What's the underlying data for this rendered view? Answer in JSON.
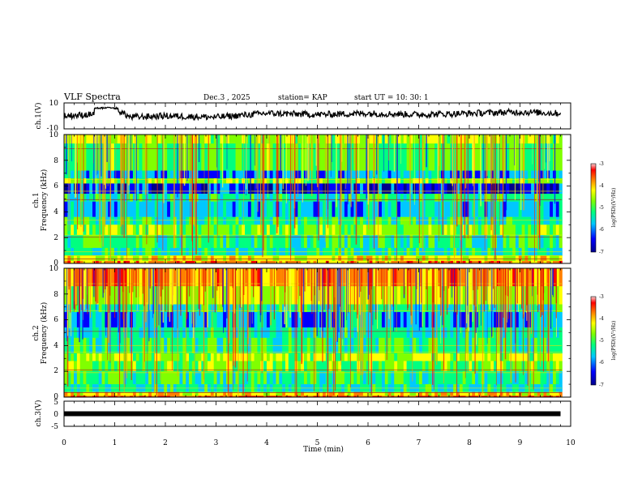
{
  "header": {
    "title": "VLF Spectra",
    "date": "Dec.3 , 2025",
    "station": "station= KAP",
    "start": "start UT = 10: 30: 1"
  },
  "chart_data": [
    {
      "type": "line",
      "panel": "ch1-waveform",
      "ylabel": "ch.1(V)",
      "ylim": [
        -10,
        10
      ],
      "ytick_labels": [
        "10",
        "-10"
      ],
      "xlim": [
        0,
        10
      ],
      "x_description": "Time (min)",
      "series": [
        {
          "name": "ch.1",
          "x": [
            0,
            0.5,
            1.0,
            1.3,
            2,
            3,
            4,
            5,
            6,
            7,
            8,
            9,
            9.8
          ],
          "values": [
            0,
            1,
            6,
            -1,
            0,
            -1,
            2,
            1,
            2,
            1,
            2,
            3,
            2
          ]
        }
      ]
    },
    {
      "type": "heatmap",
      "panel": "ch1-spectrogram",
      "ylabel_top": "ch.1",
      "ylabel": "Frequency (kHz)",
      "ylim": [
        0,
        10
      ],
      "ytick_labels": [
        "0",
        "2",
        "4",
        "6",
        "8",
        "10"
      ],
      "xlim": [
        0,
        10
      ],
      "colorbar": {
        "label": "log(PSD)(V²/Hz)",
        "range": [
          -7,
          -3
        ],
        "tick_labels": [
          "-3",
          "-4",
          "-5",
          "-6",
          "-7"
        ]
      }
    },
    {
      "type": "heatmap",
      "panel": "ch2-spectrogram",
      "ylabel_top": "ch.2",
      "ylabel": "Frequency (kHz)",
      "ylim": [
        0,
        10
      ],
      "ytick_labels": [
        "0",
        "2",
        "4",
        "6",
        "8",
        "10"
      ],
      "xlim": [
        0,
        10
      ],
      "colorbar": {
        "label": "log(PSD)(V²/Hz)",
        "range": [
          -7,
          -3
        ],
        "tick_labels": [
          "-3",
          "-4",
          "-5",
          "-6",
          "-7"
        ]
      }
    },
    {
      "type": "line",
      "panel": "ch3-waveform",
      "ylabel": "ch.3(V)",
      "ylim": [
        -5,
        5
      ],
      "ytick_labels": [
        "5",
        "0",
        "-5"
      ],
      "xlim": [
        0,
        10
      ],
      "xlabel": "Time (min)",
      "xtick_labels": [
        "0",
        "1",
        "2",
        "3",
        "4",
        "5",
        "6",
        "7",
        "8",
        "9",
        "10"
      ],
      "series": [
        {
          "name": "ch.3",
          "x": [
            0,
            9.8
          ],
          "values": [
            0,
            0
          ]
        }
      ]
    }
  ],
  "colors": {
    "colormap": [
      "#00008b",
      "#0000ff",
      "#00c8ff",
      "#00ff80",
      "#80ff00",
      "#ffff00",
      "#ff8000",
      "#ff0000",
      "#ffd0d0"
    ]
  }
}
